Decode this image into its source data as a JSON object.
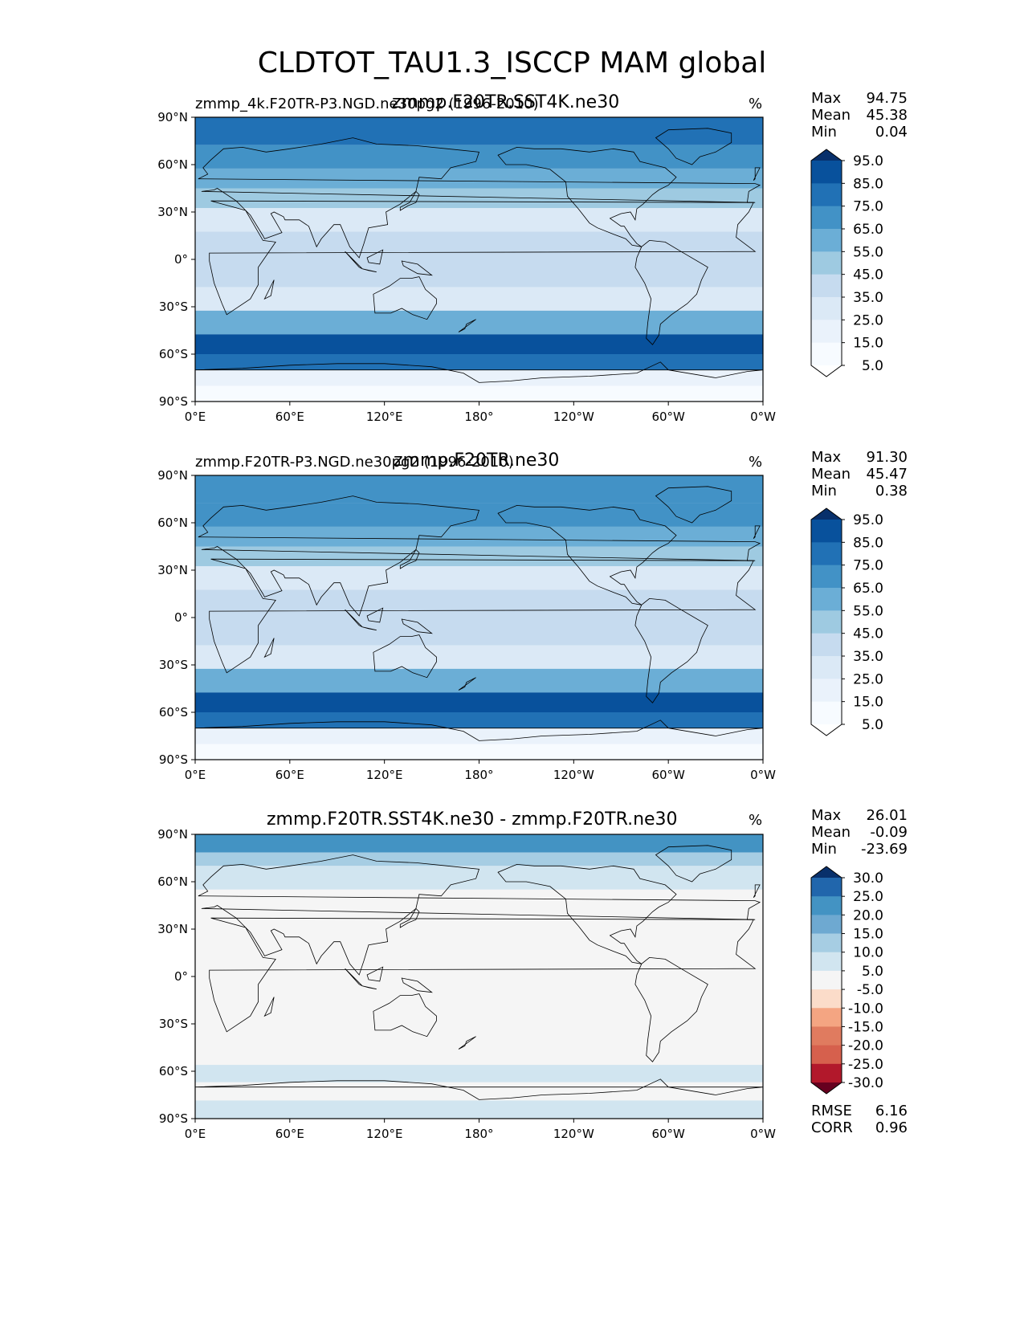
{
  "figure": {
    "title": "CLDTOT_TAU1.3_ISCCP MAM global",
    "lon_ticks": [
      "0°E",
      "60°E",
      "120°E",
      "180°",
      "120°W",
      "60°W",
      "0°W"
    ],
    "lat_ticks": [
      "90°N",
      "60°N",
      "30°N",
      "0°",
      "30°S",
      "60°S",
      "90°S"
    ]
  },
  "panels": [
    {
      "title": "zmmp.F20TR.SST4K.ne30",
      "left_title": "zmmp_4k.F20TR-P3.NGD.ne30pg2 (1996-2010)",
      "units": "%",
      "stats": [
        {
          "label": "Max",
          "value": "94.75"
        },
        {
          "label": "Mean",
          "value": "45.38"
        },
        {
          "label": "Min",
          "value": "0.04"
        }
      ],
      "colorbar": {
        "labels": [
          "95.0",
          "85.0",
          "75.0",
          "65.0",
          "55.0",
          "45.0",
          "35.0",
          "25.0",
          "15.0",
          "5.0"
        ],
        "colors": [
          "#08306b",
          "#08519c",
          "#2171b5",
          "#4292c6",
          "#6baed6",
          "#9ecae1",
          "#c6dbef",
          "#dbe9f6",
          "#eaf2fb",
          "#f7fbff",
          "#ffffff"
        ]
      }
    },
    {
      "title": "zmmp.F20TR.ne30",
      "left_title": "zmmp.F20TR-P3.NGD.ne30pg2 (1996-2010)",
      "units": "%",
      "stats": [
        {
          "label": "Max",
          "value": "91.30"
        },
        {
          "label": "Mean",
          "value": "45.47"
        },
        {
          "label": "Min",
          "value": "0.38"
        }
      ],
      "colorbar": {
        "labels": [
          "95.0",
          "85.0",
          "75.0",
          "65.0",
          "55.0",
          "45.0",
          "35.0",
          "25.0",
          "15.0",
          "5.0"
        ],
        "colors": [
          "#08306b",
          "#08519c",
          "#2171b5",
          "#4292c6",
          "#6baed6",
          "#9ecae1",
          "#c6dbef",
          "#dbe9f6",
          "#eaf2fb",
          "#f7fbff",
          "#ffffff"
        ]
      }
    },
    {
      "title": "zmmp.F20TR.SST4K.ne30 - zmmp.F20TR.ne30",
      "left_title": "",
      "units": "%",
      "stats": [
        {
          "label": "Max",
          "value": "26.01"
        },
        {
          "label": "Mean",
          "value": "-0.09"
        },
        {
          "label": "Min",
          "value": "-23.69"
        }
      ],
      "colorbar": {
        "labels": [
          "30.0",
          "25.0",
          "20.0",
          "15.0",
          "10.0",
          "5.0",
          "-5.0",
          "-10.0",
          "-15.0",
          "-20.0",
          "-25.0",
          "-30.0"
        ],
        "colors": [
          "#08306b",
          "#2166ac",
          "#4393c3",
          "#6ea9d1",
          "#a6cde3",
          "#d1e5f0",
          "#f5f5f5",
          "#fbdcc9",
          "#f4a582",
          "#e07b5f",
          "#d6604d",
          "#b2182b",
          "#67001f"
        ]
      },
      "bottom_stats": [
        {
          "label": "RMSE",
          "value": "6.16"
        },
        {
          "label": "CORR",
          "value": "0.96"
        }
      ]
    }
  ],
  "chart_data": [
    {
      "type": "heatmap",
      "title": "zmmp.F20TR.SST4K.ne30",
      "variable": "CLDTOT_TAU1.3_ISCCP",
      "units": "%",
      "xlim": [
        0,
        360
      ],
      "ylim": [
        -90,
        90
      ],
      "levels": [
        5,
        15,
        25,
        35,
        45,
        55,
        65,
        75,
        85,
        95
      ],
      "zonal_bands": [
        {
          "lat": 80,
          "value": 80
        },
        {
          "lat": 65,
          "value": 72
        },
        {
          "lat": 50,
          "value": 62
        },
        {
          "lat": 40,
          "value": 48
        },
        {
          "lat": 25,
          "value": 30
        },
        {
          "lat": 10,
          "value": 40
        },
        {
          "lat": 0,
          "value": 42
        },
        {
          "lat": -10,
          "value": 36
        },
        {
          "lat": -25,
          "value": 30
        },
        {
          "lat": -40,
          "value": 58
        },
        {
          "lat": -55,
          "value": 85
        },
        {
          "lat": -65,
          "value": 80
        },
        {
          "lat": -75,
          "value": 18
        },
        {
          "lat": -85,
          "value": 8
        }
      ],
      "stats": {
        "max": 94.75,
        "mean": 45.38,
        "min": 0.04
      }
    },
    {
      "type": "heatmap",
      "title": "zmmp.F20TR.ne30",
      "variable": "CLDTOT_TAU1.3_ISCCP",
      "units": "%",
      "xlim": [
        0,
        360
      ],
      "ylim": [
        -90,
        90
      ],
      "levels": [
        5,
        15,
        25,
        35,
        45,
        55,
        65,
        75,
        85,
        95
      ],
      "zonal_bands": [
        {
          "lat": 80,
          "value": 72
        },
        {
          "lat": 65,
          "value": 70
        },
        {
          "lat": 50,
          "value": 64
        },
        {
          "lat": 40,
          "value": 50
        },
        {
          "lat": 25,
          "value": 32
        },
        {
          "lat": 10,
          "value": 42
        },
        {
          "lat": 0,
          "value": 44
        },
        {
          "lat": -10,
          "value": 38
        },
        {
          "lat": -25,
          "value": 32
        },
        {
          "lat": -40,
          "value": 60
        },
        {
          "lat": -55,
          "value": 86
        },
        {
          "lat": -65,
          "value": 80
        },
        {
          "lat": -75,
          "value": 18
        },
        {
          "lat": -85,
          "value": 8
        }
      ],
      "stats": {
        "max": 91.3,
        "mean": 45.47,
        "min": 0.38
      }
    },
    {
      "type": "heatmap",
      "title": "zmmp.F20TR.SST4K.ne30 - zmmp.F20TR.ne30",
      "variable": "CLDTOT_TAU1.3_ISCCP difference",
      "units": "%",
      "xlim": [
        0,
        360
      ],
      "ylim": [
        -90,
        90
      ],
      "levels": [
        -30,
        -25,
        -20,
        -15,
        -10,
        -5,
        5,
        10,
        15,
        20,
        25,
        30
      ],
      "zonal_bands": [
        {
          "lat": 82,
          "value": 22
        },
        {
          "lat": 75,
          "value": 14
        },
        {
          "lat": 65,
          "value": 6
        },
        {
          "lat": 45,
          "value": 0
        },
        {
          "lat": 30,
          "value": -4
        },
        {
          "lat": 15,
          "value": 0
        },
        {
          "lat": 0,
          "value": 0
        },
        {
          "lat": -15,
          "value": 0
        },
        {
          "lat": -30,
          "value": 0
        },
        {
          "lat": -50,
          "value": 0
        },
        {
          "lat": -62,
          "value": 6
        },
        {
          "lat": -72,
          "value": 0
        },
        {
          "lat": -85,
          "value": 7
        }
      ],
      "stats": {
        "max": 26.01,
        "mean": -0.09,
        "min": -23.69,
        "rmse": 6.16,
        "corr": 0.96
      }
    }
  ]
}
